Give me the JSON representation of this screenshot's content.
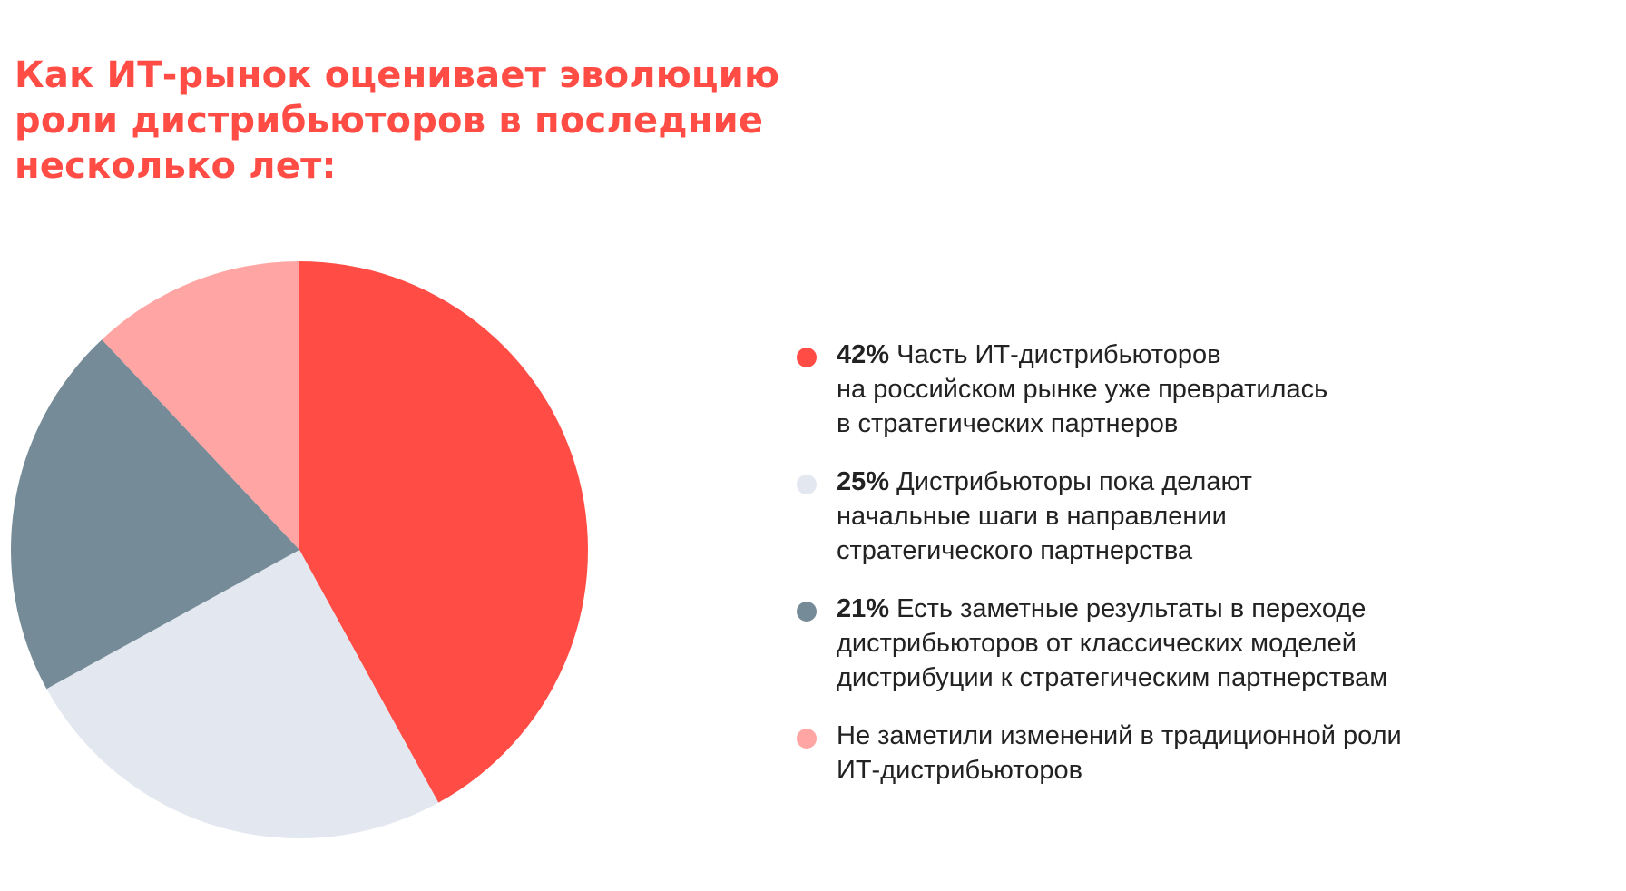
{
  "title_lines": [
    "Как ИТ-рынок оценивает эволюцию",
    "роли дистрибьюторов в последние",
    "несколько лет:"
  ],
  "colors": {
    "title": "#ff4c45",
    "text": "#222222"
  },
  "chart_data": {
    "type": "pie",
    "title": "Как ИТ-рынок оценивает эволюцию роли дистрибьюторов в последние несколько лет:",
    "start_angle_deg": 0,
    "direction": "clockwise",
    "legend_position": "right",
    "slices": [
      {
        "pct_label": "42%",
        "value": 42,
        "label": "Часть ИТ-дистрибьюторов\nна российском рынке уже превратилась\nв стратегических партнеров",
        "color": "#ff4c45"
      },
      {
        "pct_label": "25%",
        "value": 25,
        "label": "Дистрибьюторы пока делают\nначальные шаги в направлении\nстратегического партнерства",
        "color": "#e3e8f0"
      },
      {
        "pct_label": "21%",
        "value": 21,
        "label": "Есть заметные результаты в переходе\nдистрибьюторов от классических моделей\nдистрибуции к стратегическим партнерствам",
        "color": "#768b98"
      },
      {
        "pct_label": "",
        "value": 12,
        "label": "Не заметили изменений в традиционной роли\nИТ-дистрибьюторов",
        "color": "#ffa5a3"
      }
    ]
  }
}
